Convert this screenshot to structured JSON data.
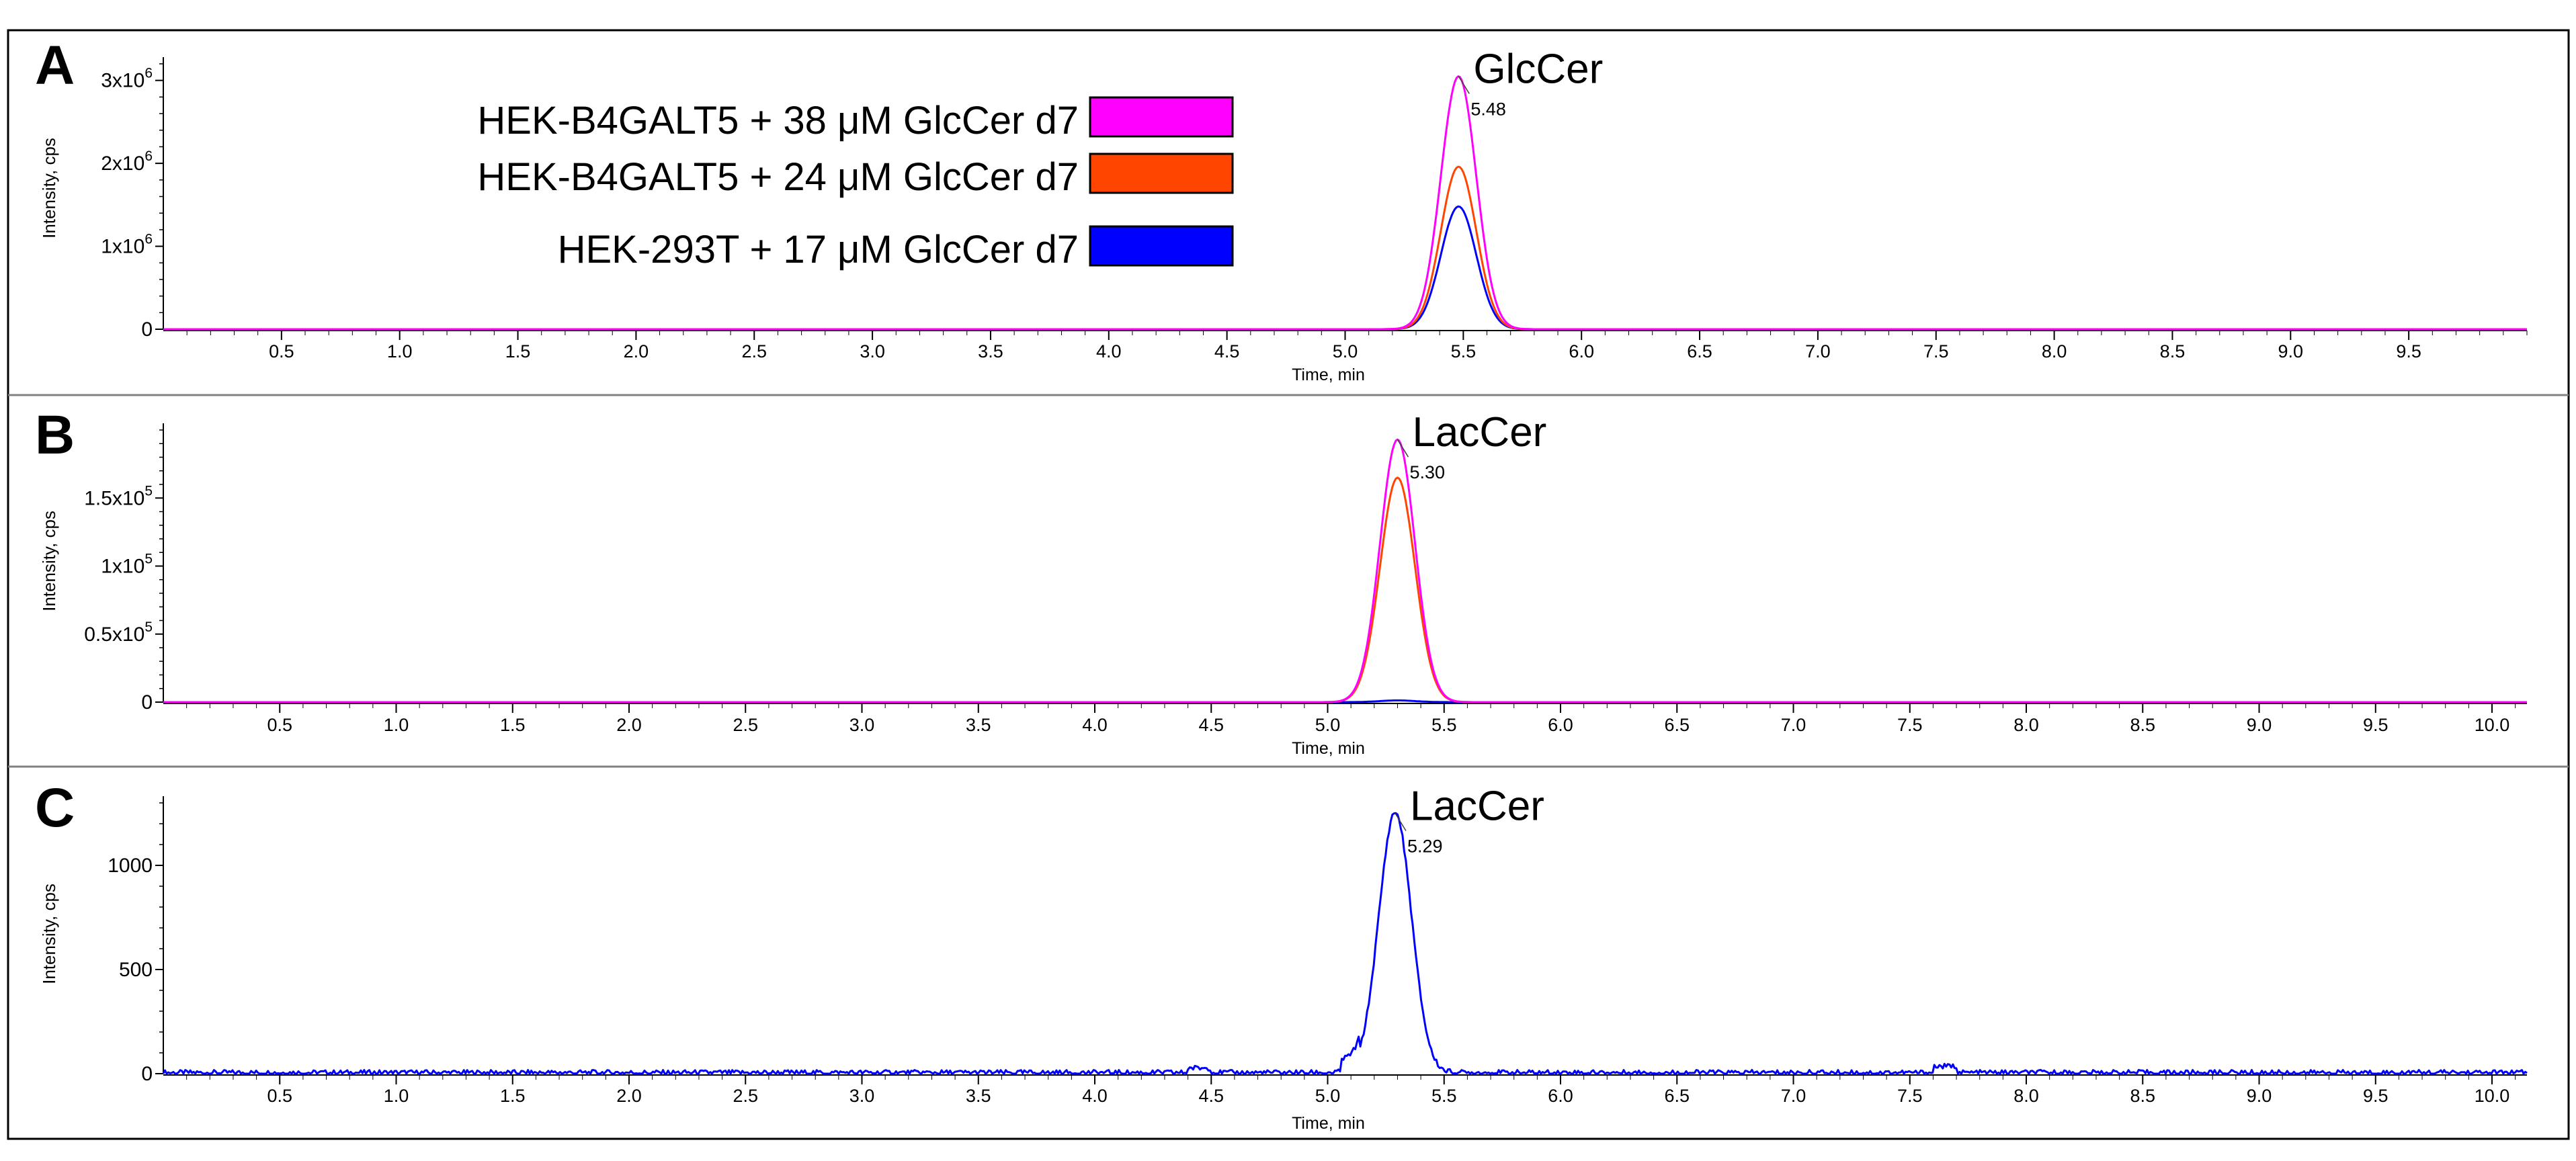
{
  "colors": {
    "magenta": "#ff00ff",
    "orange": "#ff4500",
    "blue": "#0000ff",
    "axis": "#000000",
    "border": "#000000",
    "divider": "#808080"
  },
  "legend": {
    "items": [
      {
        "label": "HEK-B4GALT5 + 38 μM GlcCer d7",
        "color": "#ff00ff"
      },
      {
        "label": "HEK-B4GALT5 + 24 μM GlcCer d7",
        "color": "#ff4500"
      },
      {
        "label": "HEK-293T + 17 μM GlcCer d7",
        "color": "#0000ff"
      }
    ]
  },
  "chart_data": [
    {
      "type": "line",
      "panel": "A",
      "analyte": "GlcCer",
      "peak_label": "5.48",
      "xlabel": "Time, min",
      "ylabel": "Intensity, cps",
      "xlim": [
        0,
        10.0
      ],
      "ylim": [
        0,
        3200000
      ],
      "xticks": [
        0.5,
        1.0,
        1.5,
        2.0,
        2.5,
        3.0,
        3.5,
        4.0,
        4.5,
        5.0,
        5.5,
        6.0,
        6.5,
        7.0,
        7.5,
        8.0,
        8.5,
        9.0,
        9.5
      ],
      "yticks": [
        {
          "value": 0,
          "base": "0",
          "exp": ""
        },
        {
          "value": 1000000,
          "base": "1x10",
          "exp": "6"
        },
        {
          "value": 2000000,
          "base": "2x10",
          "exp": "6"
        },
        {
          "value": 3000000,
          "base": "3x10",
          "exp": "6"
        }
      ],
      "series": [
        {
          "name": "HEK-B4GALT5 + 38 μM GlcCer d7",
          "color": "#ff00ff",
          "peak_time": 5.48,
          "peak_height": 3050000,
          "width": 0.075
        },
        {
          "name": "HEK-B4GALT5 + 24 μM GlcCer d7",
          "color": "#ff4500",
          "peak_time": 5.48,
          "peak_height": 1960000,
          "width": 0.075
        },
        {
          "name": "HEK-293T + 17 μM GlcCer d7",
          "color": "#0000ff",
          "peak_time": 5.48,
          "peak_height": 1480000,
          "width": 0.075
        }
      ]
    },
    {
      "type": "line",
      "panel": "B",
      "analyte": "LacCer",
      "peak_label": "5.30",
      "xlabel": "Time, min",
      "ylabel": "Intensity, cps",
      "xlim": [
        0,
        10.15
      ],
      "ylim": [
        0,
        200000
      ],
      "xticks": [
        0.5,
        1.0,
        1.5,
        2.0,
        2.5,
        3.0,
        3.5,
        4.0,
        4.5,
        5.0,
        5.5,
        6.0,
        6.5,
        7.0,
        7.5,
        8.0,
        8.5,
        9.0,
        9.5,
        10.0
      ],
      "yticks": [
        {
          "value": 0,
          "base": "0",
          "exp": ""
        },
        {
          "value": 50000,
          "base": "0.5x10",
          "exp": "5"
        },
        {
          "value": 100000,
          "base": "1x10",
          "exp": "5"
        },
        {
          "value": 150000,
          "base": "1.5x10",
          "exp": "5"
        }
      ],
      "series": [
        {
          "name": "HEK-B4GALT5 + 38 μM GlcCer d7",
          "color": "#ff00ff",
          "peak_time": 5.3,
          "peak_height": 193000,
          "width": 0.075
        },
        {
          "name": "HEK-B4GALT5 + 24 μM GlcCer d7",
          "color": "#ff4500",
          "peak_time": 5.3,
          "peak_height": 165000,
          "width": 0.075
        },
        {
          "name": "HEK-293T + 17 μM GlcCer d7",
          "color": "#0000ff",
          "peak_time": 5.3,
          "peak_height": 1250,
          "width": 0.075
        }
      ]
    },
    {
      "type": "line",
      "panel": "C",
      "analyte": "LacCer",
      "peak_label": "5.29",
      "xlabel": "Time, min",
      "ylabel": "Intensity, cps",
      "xlim": [
        0,
        10.15
      ],
      "ylim": [
        0,
        1300
      ],
      "xticks": [
        0.5,
        1.0,
        1.5,
        2.0,
        2.5,
        3.0,
        3.5,
        4.0,
        4.5,
        5.0,
        5.5,
        6.0,
        6.5,
        7.0,
        7.5,
        8.0,
        8.5,
        9.0,
        9.5,
        10.0
      ],
      "yticks": [
        {
          "value": 0,
          "base": "0",
          "exp": ""
        },
        {
          "value": 500,
          "base": "500",
          "exp": ""
        },
        {
          "value": 1000,
          "base": "1000",
          "exp": ""
        }
      ],
      "noise_amplitude": 18,
      "series": [
        {
          "name": "HEK-293T + 17 μM GlcCer d7",
          "color": "#0000ff",
          "peak_time": 5.29,
          "peak_height": 1250,
          "width": 0.07
        }
      ]
    }
  ]
}
